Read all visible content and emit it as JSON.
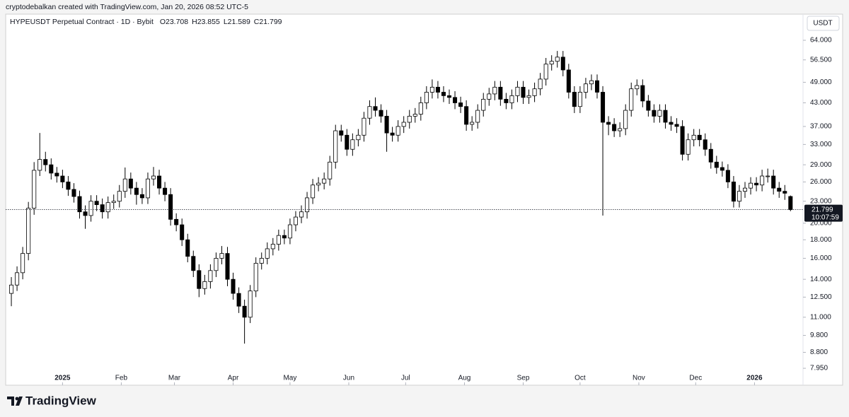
{
  "header": {
    "attribution": "cryptodebalkan created with TradingView.com, Jan 20, 2026 08:52 UTC-5"
  },
  "footer": {
    "brand": "TradingView"
  },
  "chart_data": {
    "type": "candlestick",
    "symbol": "HYPEUSDT Perpetual Contract · 1D · Bybit",
    "ohlc": [
      {
        "label": "O",
        "value": 23.708
      },
      {
        "label": "H",
        "value": 23.855
      },
      {
        "label": "L",
        "value": 21.589
      },
      {
        "label": "C",
        "value": 21.799
      }
    ],
    "currency": "USDT",
    "yscale": "log",
    "ylim": [
      7.14,
      74.9
    ],
    "yticks": [
      {
        "value": 64,
        "label": "64.000"
      },
      {
        "value": 56.5,
        "label": "56.500"
      },
      {
        "value": 49,
        "label": "49.000"
      },
      {
        "value": 43,
        "label": "43.000"
      },
      {
        "value": 37,
        "label": "37.000"
      },
      {
        "value": 33,
        "label": "33.000"
      },
      {
        "value": 29,
        "label": "29.000"
      },
      {
        "value": 26,
        "label": "26.000"
      },
      {
        "value": 23,
        "label": "23.000"
      },
      {
        "value": 20,
        "label": "20.000"
      },
      {
        "value": 18,
        "label": "18.000"
      },
      {
        "value": 16,
        "label": "16.000"
      },
      {
        "value": 14,
        "label": "14.000"
      },
      {
        "value": 12.5,
        "label": "12.500"
      },
      {
        "value": 11,
        "label": "11.000"
      },
      {
        "value": 9.8,
        "label": "9.800"
      },
      {
        "value": 8.8,
        "label": "8.800"
      },
      {
        "value": 7.95,
        "label": "7.950"
      }
    ],
    "xlim": [
      -1,
      139.2
    ],
    "xticks": [
      {
        "value": 9,
        "label": "2025",
        "bold": true
      },
      {
        "value": 19.33,
        "label": "Feb"
      },
      {
        "value": 28.67,
        "label": "Mar"
      },
      {
        "value": 39,
        "label": "Apr"
      },
      {
        "value": 49,
        "label": "May"
      },
      {
        "value": 59.33,
        "label": "Jun"
      },
      {
        "value": 69.33,
        "label": "Jul"
      },
      {
        "value": 79.67,
        "label": "Aug"
      },
      {
        "value": 90,
        "label": "Sep"
      },
      {
        "value": 100,
        "label": "Oct"
      },
      {
        "value": 110.33,
        "label": "Nov"
      },
      {
        "value": 120.33,
        "label": "Dec"
      },
      {
        "value": 130.67,
        "label": "2026",
        "bold": true
      }
    ],
    "series": [
      {
        "up_color": "#ffffff",
        "down_color": "#000000",
        "border_color": "#000000",
        "open": [
          12.8,
          13.5,
          14.6,
          16.5,
          22,
          28,
          30,
          29,
          27.5,
          27,
          26,
          24.8,
          23.7,
          21.5,
          21,
          23,
          22.5,
          21.5,
          22.8,
          23,
          24.5,
          26.5,
          25,
          24,
          23.5,
          26.5,
          27,
          25,
          24,
          20.5,
          19.8,
          18,
          16.2,
          14.8,
          13.2,
          13.8,
          14.8,
          16,
          16.5,
          14,
          12.8,
          11.8,
          11,
          13,
          15.5,
          16,
          17,
          17.5,
          18.5,
          18.2,
          19.8,
          20.8,
          21.5,
          23.5,
          25.5,
          25.8,
          26.5,
          29.5,
          36,
          35,
          32,
          34,
          35,
          39,
          42,
          41,
          39.5,
          35.5,
          35,
          37,
          38,
          39.5,
          40,
          43,
          46,
          47.5,
          46,
          45,
          44.5,
          43,
          42,
          37.5,
          38,
          41,
          44,
          45.5,
          47.5,
          44,
          43,
          45,
          47.5,
          44.5,
          45,
          47,
          50,
          55,
          56,
          57.5,
          53,
          46,
          42,
          46,
          48.5,
          49.5,
          46,
          38,
          37.5,
          36,
          36.5,
          41,
          47,
          48,
          43.5,
          41,
          39.5,
          41,
          38,
          37.5,
          37,
          31,
          34,
          35,
          34,
          32,
          29.5,
          28.5,
          28,
          26,
          23,
          24.5,
          25,
          25.8,
          25.5,
          27,
          27,
          25,
          24.5,
          23.708
        ],
        "high": [
          14.2,
          15.2,
          17.2,
          22.9,
          29.5,
          35.5,
          31.5,
          30.2,
          28.6,
          28.1,
          27,
          25.8,
          24.6,
          22.4,
          23.9,
          23.9,
          23.4,
          23.7,
          24,
          25.5,
          28.5,
          27.6,
          26,
          25,
          27.6,
          28.6,
          28.1,
          26,
          25,
          21.3,
          20.6,
          18.7,
          16.8,
          15.4,
          14.4,
          15.4,
          16.6,
          17.3,
          17.2,
          14.6,
          13.3,
          12.3,
          13.5,
          16.1,
          16.6,
          17.7,
          18.2,
          19.2,
          19.2,
          20.6,
          21.6,
          22.4,
          24.4,
          26.5,
          26.8,
          27.6,
          30.7,
          37.4,
          37.4,
          36.4,
          35.4,
          36.4,
          40.6,
          43.7,
          44.5,
          42.6,
          41.1,
          36.9,
          38.5,
          39.5,
          41.1,
          41.6,
          44.7,
          47.8,
          49.9,
          49.4,
          47.8,
          46.8,
          46.3,
          44.7,
          43.7,
          39.5,
          42.6,
          45.8,
          47.3,
          49.4,
          49.4,
          45.8,
          46.8,
          49.4,
          49.4,
          46.8,
          48.9,
          52,
          57.2,
          58.2,
          59.8,
          59.8,
          55.1,
          47.8,
          47.8,
          50.4,
          51.5,
          51.5,
          47.8,
          39.5,
          39,
          38,
          42.6,
          48.9,
          49.9,
          49.9,
          45.2,
          42.6,
          42.6,
          42.6,
          39.5,
          39,
          38.5,
          35.4,
          36.4,
          36.4,
          35.4,
          33.3,
          30.7,
          29.6,
          29.1,
          27,
          25.5,
          26,
          26.8,
          26.8,
          28.1,
          28.3,
          28.1,
          26,
          25.5,
          23.855
        ],
        "low": [
          11.8,
          13,
          14,
          15.8,
          21.1,
          27,
          27.8,
          26.4,
          25.9,
          25,
          23.8,
          22.8,
          20.6,
          19.3,
          20.2,
          21.6,
          20.6,
          20.6,
          21.9,
          22.1,
          23.5,
          24,
          22.5,
          22.6,
          22.6,
          25.4,
          24,
          23,
          19.7,
          19,
          17.3,
          15.6,
          14.2,
          12.5,
          12.7,
          13.2,
          14.2,
          15.4,
          13.4,
          12.3,
          11.3,
          9.3,
          10.6,
          12.5,
          14.9,
          15.4,
          16.3,
          16.8,
          17.5,
          17.5,
          19,
          20,
          20.6,
          22.6,
          24.5,
          24.8,
          25.4,
          28.3,
          33.6,
          30.7,
          30.7,
          32.6,
          33.6,
          37.4,
          39.4,
          37.9,
          31.5,
          33.6,
          33.6,
          35.5,
          36.5,
          37.9,
          38.4,
          41.3,
          44.2,
          44.2,
          43.2,
          42.7,
          41.3,
          40.3,
          36,
          36,
          36.5,
          39.4,
          42.2,
          43.7,
          42.2,
          41.3,
          41.3,
          43.2,
          42.7,
          42.7,
          43.2,
          45.1,
          48,
          52.8,
          53.8,
          50.9,
          44.2,
          40.3,
          40.3,
          44.2,
          46.6,
          44.2,
          21,
          35,
          34.6,
          34.6,
          35,
          39.4,
          45.1,
          41.8,
          39.4,
          37.9,
          37.9,
          36.5,
          36,
          35.5,
          29.8,
          29.8,
          32.6,
          32.6,
          30.7,
          28.3,
          27.4,
          26.9,
          25,
          22.1,
          22.1,
          23.5,
          24,
          24.5,
          24.5,
          25.9,
          24,
          23.5,
          23.2,
          21.589
        ],
        "close": [
          13.5,
          14.6,
          16.5,
          22,
          28,
          30,
          29,
          27.5,
          27,
          26,
          24.8,
          23.7,
          21.5,
          21,
          23,
          22.5,
          21.5,
          22.8,
          23,
          24.5,
          26.5,
          25,
          24,
          23.5,
          26.5,
          27,
          25,
          24,
          20.5,
          19.8,
          18,
          16.2,
          14.8,
          13.2,
          13.8,
          14.8,
          16,
          16.5,
          14,
          12.8,
          11.8,
          11,
          13,
          15.5,
          16,
          17,
          17.5,
          18.5,
          18.2,
          19.8,
          20.8,
          21.5,
          23.5,
          25.5,
          25.8,
          26.5,
          29.5,
          36,
          35,
          32,
          34,
          35,
          39,
          42,
          41,
          39.5,
          35.5,
          35,
          37,
          38,
          39.5,
          40,
          43,
          46,
          47.5,
          46,
          45,
          44.5,
          43,
          42,
          37.5,
          38,
          41,
          44,
          45.5,
          47.5,
          44,
          43,
          45,
          47.5,
          44.5,
          45,
          47,
          50,
          55,
          56,
          57.5,
          53,
          46,
          42,
          46,
          48.5,
          49.5,
          46,
          38,
          37.5,
          36,
          36.5,
          41,
          47,
          48,
          43.5,
          41,
          39.5,
          41,
          38,
          37.5,
          37,
          31,
          34,
          35,
          34,
          32,
          29.5,
          28.5,
          28,
          26,
          23,
          24.5,
          25,
          25.8,
          25.5,
          27,
          27,
          25,
          24.5,
          24.2,
          21.799
        ]
      }
    ],
    "last_price": 21.799,
    "countdown": "10:07:59"
  }
}
